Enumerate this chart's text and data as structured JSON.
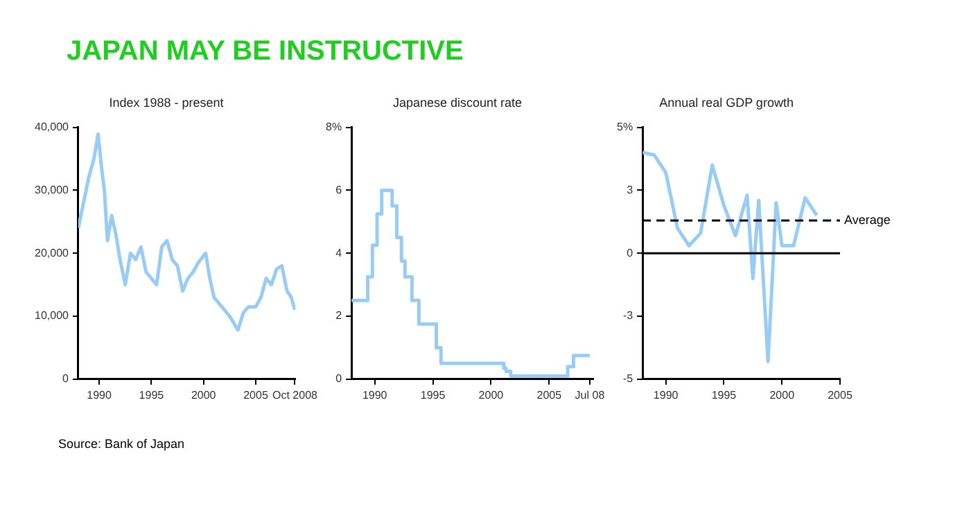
{
  "chart_data": [
    {
      "type": "other",
      "title": "JAPAN MAY BE INSTRUCTIVE"
    },
    {
      "type": "line",
      "title": "Index 1988 - present",
      "annotations": [
        "Source: Bank of Japan"
      ],
      "grid": false,
      "legend": false,
      "marker": "none",
      "xlim": [
        1988,
        2008.8
      ],
      "xticks": [
        1990,
        1995,
        2000,
        2005,
        {
          "value": 2008.75,
          "label": "Oct 2008"
        }
      ],
      "ylim": [
        0,
        40000
      ],
      "yticks": [
        0,
        {
          "value": 10000,
          "label": "10,000"
        },
        {
          "value": 20000,
          "label": "20,000"
        },
        {
          "value": 30000,
          "label": "30,000"
        },
        {
          "value": 40000,
          "label": "40,000"
        }
      ],
      "series": [
        {
          "color": "#99ccf5",
          "x": [
            1988,
            1988.5,
            1989,
            1989.5,
            1989.9,
            1990.2,
            1990.5,
            1990.8,
            1991.2,
            1991.6,
            1992,
            1992.5,
            1993,
            1993.5,
            1994,
            1994.5,
            1995,
            1995.5,
            1996,
            1996.5,
            1997,
            1997.5,
            1998,
            1998.5,
            1999,
            1999.5,
            2000.2,
            2000.6,
            2001,
            2001.5,
            2002,
            2002.5,
            2003.3,
            2003.8,
            2004.3,
            2005,
            2005.5,
            2006,
            2006.5,
            2007,
            2007.5,
            2008,
            2008.4,
            2008.75
          ],
          "values": [
            24000,
            28000,
            32000,
            35000,
            38900,
            34000,
            30000,
            22000,
            26000,
            23000,
            19000,
            15000,
            20000,
            19000,
            21000,
            17000,
            16000,
            15000,
            21000,
            22000,
            19000,
            18000,
            14000,
            16000,
            17000,
            18500,
            20000,
            16000,
            13000,
            12000,
            11000,
            10000,
            7800,
            10500,
            11500,
            11500,
            13000,
            16000,
            15000,
            17500,
            18000,
            14000,
            13000,
            11000
          ]
        }
      ]
    },
    {
      "type": "step",
      "title": "Japanese discount rate",
      "grid": false,
      "legend": false,
      "marker": "none",
      "xlim": [
        1988,
        2008.8
      ],
      "xticks": [
        1990,
        1995,
        2000,
        2005,
        {
          "value": 2008.5,
          "label": "Jul 08"
        }
      ],
      "ylim": [
        0,
        8
      ],
      "yticks": [
        0,
        2,
        4,
        6,
        {
          "value": 8,
          "label": "8%"
        }
      ],
      "series": [
        {
          "color": "#99ccf5",
          "x": [
            1988,
            1989.4,
            1989.8,
            1990.2,
            1990.6,
            1991.5,
            1991.9,
            1992.3,
            1992.6,
            1993.2,
            1993.8,
            1995.3,
            1995.7,
            2001.1,
            2001.3,
            2001.7,
            2006.6,
            2007.1,
            2008.5
          ],
          "values": [
            2.5,
            3.25,
            4.25,
            5.25,
            6,
            5.5,
            4.5,
            3.75,
            3.25,
            2.5,
            1.75,
            1,
            0.5,
            0.35,
            0.25,
            0.1,
            0.4,
            0.75,
            0.75
          ]
        }
      ]
    },
    {
      "type": "line",
      "title": "Annual real GDP growth",
      "grid": false,
      "legend": false,
      "marker": "none",
      "xlim": [
        1988,
        2005
      ],
      "xticks": [
        1990,
        1995,
        2000,
        2005
      ],
      "ylim": [
        -5,
        5
      ],
      "yticks": [
        {
          "value": -5,
          "label": "-5"
        },
        {
          "value": -2.5,
          "label": "-3"
        },
        0,
        {
          "value": 2.5,
          "label": "3"
        },
        {
          "value": 5,
          "label": "5%"
        }
      ],
      "ref_lines": [
        {
          "axis": "y",
          "value": 1.3,
          "label": "Average",
          "line_style": "dashed",
          "color": "#000000"
        },
        {
          "axis": "y",
          "value": 0,
          "color": "#000000"
        }
      ],
      "series": [
        {
          "color": "#99ccf5",
          "x": [
            1988,
            1989,
            1990,
            1991,
            1992,
            1993,
            1994,
            1995,
            1996,
            1997,
            1997.5,
            1998,
            1998.8,
            1999.5,
            2000,
            2001,
            2002,
            2003
          ],
          "values": [
            4.0,
            3.9,
            3.2,
            1.0,
            0.3,
            0.8,
            3.5,
            1.9,
            0.7,
            2.3,
            -1.0,
            2.1,
            -4.3,
            2.0,
            0.3,
            0.3,
            2.2,
            1.5
          ]
        }
      ]
    }
  ]
}
